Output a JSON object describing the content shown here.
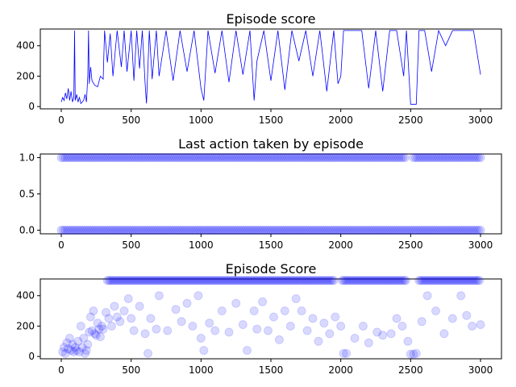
{
  "chart_data": [
    {
      "type": "line",
      "title": "Episode score",
      "xlim": [
        -150,
        3150
      ],
      "ylim": [
        -15,
        510
      ],
      "xticks": [
        0,
        500,
        1000,
        1500,
        2000,
        2500,
        3000
      ],
      "yticks": [
        0,
        200,
        400
      ],
      "color": "#0000ff",
      "series": [
        {
          "x": [
            0,
            10,
            20,
            30,
            40,
            50,
            60,
            70,
            80,
            90,
            95,
            100,
            110,
            120,
            130,
            140,
            150,
            160,
            170,
            180,
            190,
            195,
            200,
            210,
            220,
            240,
            260,
            280,
            300,
            310,
            330,
            350,
            370,
            400,
            430,
            450,
            470,
            500,
            520,
            540,
            560,
            580,
            600,
            610,
            630,
            650,
            680,
            700,
            750,
            800,
            850,
            900,
            950,
            1000,
            1020,
            1050,
            1100,
            1150,
            1200,
            1250,
            1300,
            1350,
            1380,
            1400,
            1450,
            1500,
            1550,
            1600,
            1650,
            1700,
            1750,
            1800,
            1850,
            1900,
            1950,
            1980,
            2000,
            2020,
            2050,
            2100,
            2150,
            2200,
            2250,
            2300,
            2350,
            2400,
            2450,
            2470,
            2500,
            2520,
            2540,
            2560,
            2600,
            2650,
            2700,
            2750,
            2800,
            2850,
            2900,
            2950,
            3000
          ],
          "y": [
            30,
            60,
            40,
            90,
            50,
            120,
            40,
            100,
            30,
            60,
            500,
            40,
            80,
            30,
            60,
            20,
            30,
            40,
            80,
            30,
            200,
            500,
            150,
            260,
            170,
            140,
            130,
            200,
            180,
            500,
            290,
            480,
            200,
            500,
            260,
            500,
            230,
            500,
            170,
            500,
            250,
            500,
            150,
            20,
            500,
            180,
            500,
            200,
            500,
            170,
            500,
            230,
            500,
            120,
            40,
            500,
            220,
            500,
            160,
            500,
            210,
            500,
            40,
            300,
            500,
            170,
            500,
            110,
            500,
            300,
            500,
            200,
            500,
            100,
            500,
            150,
            200,
            500,
            500,
            500,
            500,
            120,
            500,
            100,
            500,
            500,
            200,
            500,
            15,
            15,
            15,
            500,
            500,
            230,
            500,
            400,
            500,
            500,
            500,
            500,
            210
          ]
        }
      ]
    },
    {
      "type": "scatter",
      "title": "Last action taken by episode",
      "xlim": [
        -150,
        3150
      ],
      "ylim": [
        -0.05,
        1.05
      ],
      "xticks": [
        0,
        500,
        1000,
        1500,
        2000,
        2500,
        3000
      ],
      "yticks": [
        0.0,
        0.5,
        1.0
      ],
      "color": "#0000ff",
      "series": [
        {
          "name": "",
          "values": [
            0,
            1
          ]
        }
      ],
      "x_range": [
        0,
        3000
      ],
      "gap_in_upper_row": [
        2460,
        2510
      ]
    },
    {
      "type": "scatter",
      "title": "Episode Score",
      "xlim": [
        -150,
        3150
      ],
      "ylim": [
        -15,
        510
      ],
      "xticks": [
        0,
        500,
        1000,
        1500,
        2000,
        2500,
        3000
      ],
      "yticks": [
        0,
        200,
        400
      ],
      "color": "#0000ff",
      "series": [
        {
          "x": [
            10,
            20,
            30,
            40,
            50,
            60,
            70,
            80,
            90,
            100,
            110,
            120,
            130,
            140,
            150,
            160,
            170,
            180,
            190,
            200,
            210,
            220,
            230,
            240,
            250,
            260,
            270,
            280,
            290,
            300,
            320,
            340,
            360,
            380,
            400,
            420,
            450,
            480,
            500,
            520,
            560,
            600,
            620,
            640,
            680,
            700,
            760,
            820,
            860,
            900,
            940,
            980,
            1000,
            1020,
            1060,
            1100,
            1150,
            1200,
            1250,
            1300,
            1330,
            1380,
            1400,
            1440,
            1480,
            1520,
            1560,
            1600,
            1640,
            1680,
            1720,
            1760,
            1800,
            1840,
            1880,
            1920,
            1960,
            2000,
            2020,
            2040,
            2100,
            2160,
            2200,
            2260,
            2300,
            2360,
            2400,
            2440,
            2480,
            2500,
            2520,
            2540,
            2580,
            2620,
            2680,
            2740,
            2800,
            2860,
            2900,
            2940,
            3000
          ],
          "y": [
            30,
            60,
            20,
            90,
            50,
            120,
            40,
            80,
            30,
            60,
            40,
            100,
            30,
            200,
            60,
            120,
            20,
            40,
            80,
            160,
            260,
            170,
            300,
            150,
            140,
            220,
            180,
            130,
            200,
            180,
            290,
            250,
            200,
            330,
            260,
            230,
            300,
            380,
            250,
            170,
            330,
            150,
            20,
            250,
            180,
            400,
            170,
            310,
            230,
            350,
            200,
            400,
            120,
            40,
            220,
            170,
            300,
            160,
            350,
            210,
            40,
            300,
            180,
            360,
            170,
            260,
            110,
            300,
            200,
            380,
            300,
            170,
            250,
            100,
            220,
            150,
            260,
            200,
            20,
            20,
            120,
            200,
            90,
            160,
            140,
            150,
            250,
            200,
            100,
            15,
            15,
            20,
            230,
            400,
            300,
            150,
            250,
            400,
            270,
            200,
            210
          ]
        }
      ],
      "capped_band_ranges": [
        [
          330,
          1950
        ],
        [
          2010,
          2470
        ],
        [
          2560,
          3000
        ]
      ],
      "capped_value": 500
    }
  ]
}
